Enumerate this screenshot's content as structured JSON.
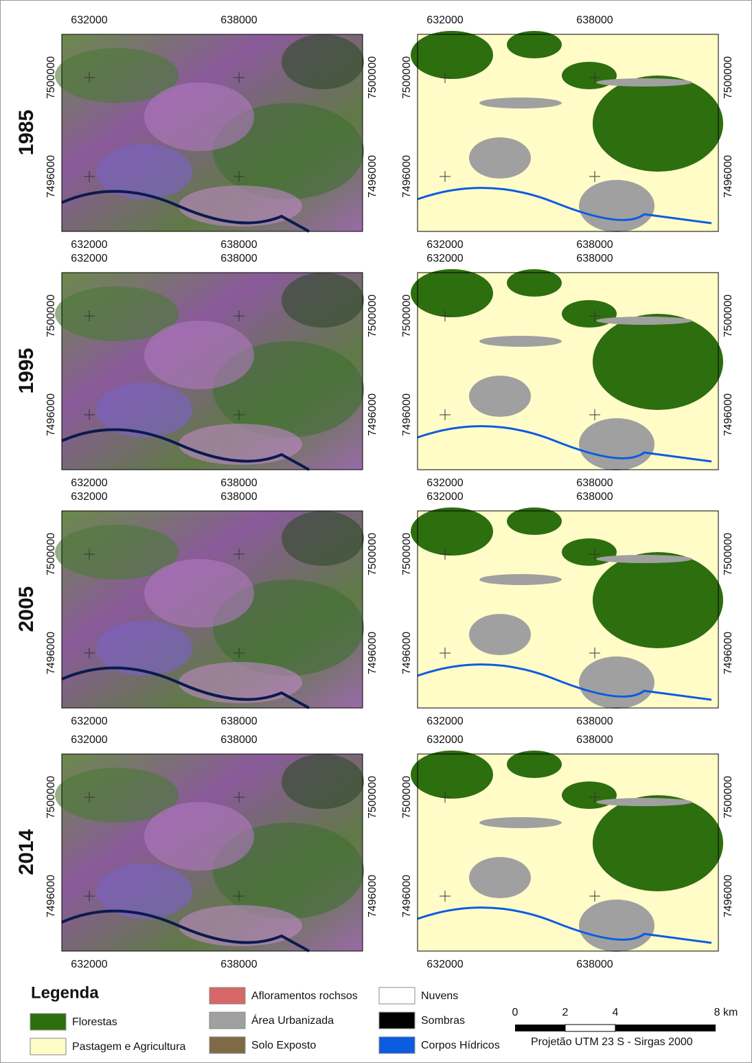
{
  "rows": [
    {
      "year": "1985"
    },
    {
      "year": "1995"
    },
    {
      "year": "2005"
    },
    {
      "year": "2014"
    }
  ],
  "easting_labels": [
    "632000",
    "638000"
  ],
  "northing_labels": [
    "7500000",
    "7496000"
  ],
  "legend": {
    "title": "Legenda",
    "items": [
      {
        "label": "Florestas",
        "color": "#2d6e0e"
      },
      {
        "label": "Pastagem e Agricultura",
        "color": "#fffcc8"
      },
      {
        "label": "Afloramentos rochsos",
        "color": "#d66868"
      },
      {
        "label": "Área Urbanizada",
        "color": "#a0a0a0"
      },
      {
        "label": "Solo Exposto",
        "color": "#7f6a48"
      },
      {
        "label": "Nuvens",
        "color": "#ffffff"
      },
      {
        "label": "Sombras",
        "color": "#000000"
      },
      {
        "label": "Corpos Hídricos",
        "color": "#0a5ce0"
      }
    ]
  },
  "scale_bar": {
    "ticks": [
      "0",
      "2",
      "4",
      "8 km"
    ]
  },
  "projection": "Projetão UTM 23 S - Sirgas 2000"
}
